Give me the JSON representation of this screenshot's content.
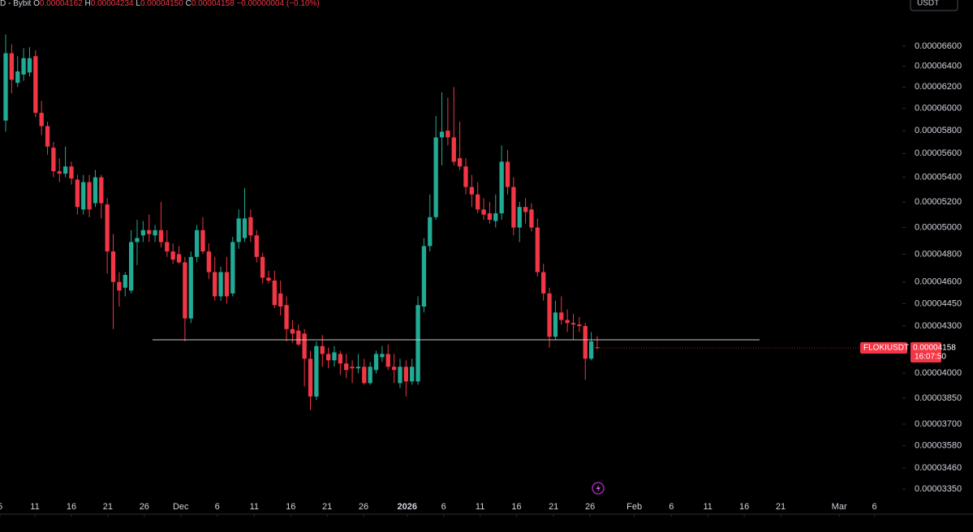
{
  "header": {
    "symbol": "D - Bybit",
    "open_label": "O",
    "open": "0.00004162",
    "high_label": "H",
    "high": "0.00004234",
    "low_label": "L",
    "low": "0.00004150",
    "close_label": "C",
    "close": "0.00004158",
    "change": "−0.00000004 (−0.10%)",
    "currency": "USDT"
  },
  "chart_data": {
    "type": "candlestick",
    "log_scale": true,
    "up_color": "#22ab94",
    "down_color": "#f23645",
    "symbol": "FLOKIUSDT",
    "last_price_label": "0.00004158",
    "countdown": "16:07:50",
    "hline": 4.21e-05,
    "hline_color": "#c8c8c8",
    "open": [
      5.89e-05,
      6.53e-05,
      6.24e-05,
      6.32e-05,
      6.34e-05,
      6.5e-05,
      5.96e-05,
      5.84e-05,
      5.65e-05,
      5.45e-05,
      5.43e-05,
      5.49e-05,
      5.38e-05,
      5.14e-05,
      5.36e-05,
      5.19e-05,
      5.4e-05,
      5.18e-05,
      4.82e-05,
      4.6e-05,
      4.56e-05,
      4.54e-05,
      4.89e-05,
      4.94e-05,
      4.98e-05,
      4.94e-05,
      4.98e-05,
      4.89e-05,
      4.82e-05,
      4.8e-05,
      4.74e-05,
      4.35e-05,
      4.78e-05,
      4.98e-05,
      4.82e-05,
      4.67e-05,
      4.5e-05,
      4.67e-05,
      4.52e-05,
      4.89e-05,
      4.92e-05,
      5.08e-05,
      4.94e-05,
      4.78e-05,
      4.63e-05,
      4.61e-05,
      4.52e-05,
      4.44e-05,
      4.28e-05,
      4.27e-05,
      4.25e-05,
      4.09e-05,
      3.86e-05,
      4.17e-05,
      4.12e-05,
      4.08e-05,
      4.12e-05,
      4.06e-05,
      4.04e-05,
      4.03e-05,
      4.04e-05,
      3.94e-05,
      4.02e-05,
      4.1e-05,
      4.12e-05,
      4.04e-05,
      3.94e-05,
      4.04e-05,
      3.95e-05,
      3.95e-05,
      4.43e-05,
      4.86e-05,
      5.08e-05,
      5.74e-05,
      5.8e-05,
      5.74e-05,
      5.56e-05,
      5.49e-05,
      5.32e-05,
      5.26e-05,
      5.14e-05,
      5.11e-05,
      5.05e-05,
      5.11e-05,
      5.53e-05,
      5.32e-05,
      5e-05,
      5.16e-05,
      5.14e-05,
      5e-05,
      4.67e-05,
      4.52e-05,
      4.23e-05,
      4.39e-05,
      4.34e-05,
      4.32e-05,
      4.31e-05,
      4.3e-05,
      4.09e-05,
      4.162e-05
    ],
    "high": [
      6.72e-05,
      6.62e-05,
      6.5e-05,
      6.58e-05,
      6.59e-05,
      6.56e-05,
      6.07e-05,
      5.88e-05,
      5.7e-05,
      5.56e-05,
      5.66e-05,
      5.53e-05,
      5.42e-05,
      5.42e-05,
      5.42e-05,
      5.46e-05,
      5.42e-05,
      5.23e-05,
      4.95e-05,
      4.67e-05,
      4.67e-05,
      4.98e-05,
      5.06e-05,
      5.05e-05,
      5.1e-05,
      5.02e-05,
      5.2e-05,
      4.98e-05,
      4.88e-05,
      4.86e-05,
      4.78e-05,
      4.82e-05,
      5.02e-05,
      5.08e-05,
      4.88e-05,
      4.78e-05,
      4.71e-05,
      4.78e-05,
      4.93e-05,
      5.14e-05,
      5.31e-05,
      5.14e-05,
      4.98e-05,
      4.81e-05,
      4.68e-05,
      4.68e-05,
      4.61e-05,
      4.5e-05,
      4.34e-05,
      4.31e-05,
      4.28e-05,
      4.14e-05,
      4.2e-05,
      4.24e-05,
      4.16e-05,
      4.17e-05,
      4.14e-05,
      4.12e-05,
      4.08e-05,
      4.12e-05,
      4.09e-05,
      4.07e-05,
      4.14e-05,
      4.17e-05,
      4.18e-05,
      4.12e-05,
      4.09e-05,
      4.08e-05,
      4.09e-05,
      4.5e-05,
      4.92e-05,
      5.26e-05,
      5.93e-05,
      6.15e-05,
      6.1e-05,
      6.2e-05,
      5.88e-05,
      5.56e-05,
      5.42e-05,
      5.36e-05,
      5.23e-05,
      5.2e-05,
      5.26e-05,
      5.67e-05,
      5.63e-05,
      5.4e-05,
      5.2e-05,
      5.23e-05,
      5.19e-05,
      5.07e-05,
      4.73e-05,
      4.56e-05,
      4.47e-05,
      4.5e-05,
      4.41e-05,
      4.38e-05,
      4.36e-05,
      4.32e-05,
      4.26e-05,
      4.234e-05
    ],
    "low": [
      5.79e-05,
      6.14e-05,
      6.2e-05,
      6.26e-05,
      6.3e-05,
      5.92e-05,
      5.76e-05,
      5.59e-05,
      5.4e-05,
      5.36e-05,
      5.4e-05,
      5.34e-05,
      5.1e-05,
      5.1e-05,
      5.08e-05,
      5.16e-05,
      5.07e-05,
      4.66e-05,
      4.28e-05,
      4.43e-05,
      4.5e-05,
      4.52e-05,
      4.72e-05,
      4.89e-05,
      4.89e-05,
      4.89e-05,
      4.85e-05,
      4.78e-05,
      4.73e-05,
      4.73e-05,
      4.2e-05,
      4.32e-05,
      4.74e-05,
      4.8e-05,
      4.62e-05,
      4.47e-05,
      4.47e-05,
      4.45e-05,
      4.5e-05,
      4.84e-05,
      4.89e-05,
      4.89e-05,
      4.74e-05,
      4.59e-05,
      4.59e-05,
      4.42e-05,
      4.37e-05,
      4.2e-05,
      4.19e-05,
      4.17e-05,
      3.92e-05,
      3.78e-05,
      3.84e-05,
      4.04e-05,
      4.03e-05,
      4.04e-05,
      3.99e-05,
      3.97e-05,
      3.94e-05,
      4e-05,
      3.93e-05,
      3.93e-05,
      4e-05,
      4.07e-05,
      4.02e-05,
      3.94e-05,
      3.91e-05,
      3.86e-05,
      3.93e-05,
      3.93e-05,
      4.39e-05,
      4.82e-05,
      5.06e-05,
      5.5e-05,
      5.67e-05,
      5.5e-05,
      5.46e-05,
      5.26e-05,
      5.16e-05,
      5.11e-05,
      5.06e-05,
      5.03e-05,
      5e-05,
      5.06e-05,
      5.26e-05,
      4.94e-05,
      4.89e-05,
      5.03e-05,
      4.97e-05,
      4.64e-05,
      4.47e-05,
      4.16e-05,
      4.21e-05,
      4.31e-05,
      4.26e-05,
      4.21e-05,
      4.26e-05,
      3.96e-05,
      4.08e-05,
      4.15e-05
    ],
    "close": [
      6.53e-05,
      6.27e-05,
      6.35e-05,
      6.48e-05,
      6.48e-05,
      5.96e-05,
      5.84e-05,
      5.66e-05,
      5.45e-05,
      5.43e-05,
      5.49e-05,
      5.39e-05,
      5.16e-05,
      5.36e-05,
      5.14e-05,
      5.4e-05,
      5.19e-05,
      4.82e-05,
      4.6e-05,
      4.54e-05,
      4.65e-05,
      4.89e-05,
      4.92e-05,
      4.98e-05,
      4.95e-05,
      4.98e-05,
      4.89e-05,
      4.82e-05,
      4.76e-05,
      4.74e-05,
      4.35e-05,
      4.78e-05,
      4.98e-05,
      4.82e-05,
      4.67e-05,
      4.5e-05,
      4.67e-05,
      4.5e-05,
      4.89e-05,
      5.07e-05,
      5.07e-05,
      4.94e-05,
      4.78e-05,
      4.63e-05,
      4.61e-05,
      4.44e-05,
      4.43e-05,
      4.28e-05,
      4.25e-05,
      4.18e-05,
      4.09e-05,
      3.86e-05,
      4.17e-05,
      4.12e-05,
      4.08e-05,
      4.13e-05,
      4.06e-05,
      4.02e-05,
      4.03e-05,
      4.04e-05,
      3.94e-05,
      4.04e-05,
      4.12e-05,
      4.12e-05,
      4.04e-05,
      4.02e-05,
      4.04e-05,
      3.95e-05,
      4.04e-05,
      4.44e-05,
      4.86e-05,
      5.08e-05,
      5.74e-05,
      5.79e-05,
      5.74e-05,
      5.53e-05,
      5.49e-05,
      5.32e-05,
      5.26e-05,
      5.14e-05,
      5.1e-05,
      5.06e-05,
      5.11e-05,
      5.53e-05,
      5.32e-05,
      5e-05,
      5.16e-05,
      5.12e-05,
      5e-05,
      4.67e-05,
      4.52e-05,
      4.23e-05,
      4.39e-05,
      4.34e-05,
      4.32e-05,
      4.31e-05,
      4.3e-05,
      4.09e-05,
      4.2e-05,
      4.158e-05
    ],
    "xlim": [
      -0.95,
      149.8
    ],
    "xticks": [
      {
        "value": -0.95,
        "label": "5"
      },
      {
        "value": 4.89,
        "label": "11"
      },
      {
        "value": 11.0,
        "label": "16"
      },
      {
        "value": 17.1,
        "label": "21"
      },
      {
        "value": 23.2,
        "label": "26"
      },
      {
        "value": 29.3,
        "label": "Dec"
      },
      {
        "value": 35.4,
        "label": "6"
      },
      {
        "value": 41.6,
        "label": "11"
      },
      {
        "value": 47.7,
        "label": "16"
      },
      {
        "value": 53.8,
        "label": "21"
      },
      {
        "value": 59.9,
        "label": "26"
      },
      {
        "value": 67.2,
        "label": "2026"
      },
      {
        "value": 73.3,
        "label": "6"
      },
      {
        "value": 79.4,
        "label": "11"
      },
      {
        "value": 85.5,
        "label": "16"
      },
      {
        "value": 91.7,
        "label": "21"
      },
      {
        "value": 97.8,
        "label": "26"
      },
      {
        "value": 105.2,
        "label": "Feb"
      },
      {
        "value": 111.4,
        "label": "6"
      },
      {
        "value": 117.5,
        "label": "11"
      },
      {
        "value": 123.6,
        "label": "16"
      },
      {
        "value": 129.7,
        "label": "21"
      },
      {
        "value": 139.5,
        "label": "Mar"
      },
      {
        "value": 145.4,
        "label": "6"
      }
    ],
    "ylim": [
      3.313e-05,
      7.084e-05
    ],
    "yticks": [
      {
        "value": 6.6e-05,
        "label": "0.00006600"
      },
      {
        "value": 6.4e-05,
        "label": "0.00006400"
      },
      {
        "value": 6.2e-05,
        "label": "0.00006200"
      },
      {
        "value": 6e-05,
        "label": "0.00006000"
      },
      {
        "value": 5.8e-05,
        "label": "0.00005800"
      },
      {
        "value": 5.6e-05,
        "label": "0.00005600"
      },
      {
        "value": 5.4e-05,
        "label": "0.00005400"
      },
      {
        "value": 5.2e-05,
        "label": "0.00005200"
      },
      {
        "value": 5e-05,
        "label": "0.00005000"
      },
      {
        "value": 4.8e-05,
        "label": "0.00004800"
      },
      {
        "value": 4.6e-05,
        "label": "0.00004600"
      },
      {
        "value": 4.45e-05,
        "label": "0.00004450"
      },
      {
        "value": 4.3e-05,
        "label": "0.00004300"
      },
      {
        "value": 4e-05,
        "label": "0.00004000"
      },
      {
        "value": 3.85e-05,
        "label": "0.00003850"
      },
      {
        "value": 3.7e-05,
        "label": "0.00003700"
      },
      {
        "value": 3.58e-05,
        "label": "0.00003580"
      },
      {
        "value": 3.46e-05,
        "label": "0.00003460"
      },
      {
        "value": 3.35e-05,
        "label": "0.00003350"
      }
    ]
  }
}
